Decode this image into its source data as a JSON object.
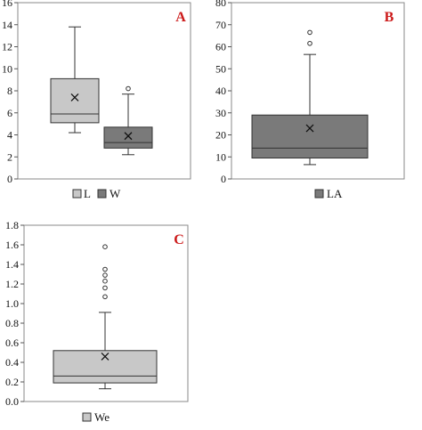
{
  "chart_data": [
    {
      "type": "box",
      "panel_label": "A",
      "ylim": [
        0,
        16
      ],
      "yticks": [
        0,
        2,
        4,
        6,
        8,
        10,
        12,
        14,
        16
      ],
      "grid": false,
      "legend_position": "bottom",
      "series": [
        {
          "name": "L",
          "color": "#c8c8c8",
          "min": 4.2,
          "q1": 5.1,
          "median": 5.9,
          "q3": 9.1,
          "max": 13.8,
          "mean": 7.4,
          "outliers": []
        },
        {
          "name": "W",
          "color": "#7a7a7a",
          "min": 2.2,
          "q1": 2.8,
          "median": 3.3,
          "q3": 4.7,
          "max": 7.7,
          "mean": 3.9,
          "outliers": [
            8.2
          ]
        }
      ]
    },
    {
      "type": "box",
      "panel_label": "B",
      "ylim": [
        0,
        80
      ],
      "yticks": [
        0,
        10,
        20,
        30,
        40,
        50,
        60,
        70,
        80
      ],
      "grid": false,
      "legend_position": "bottom",
      "series": [
        {
          "name": "LA",
          "color": "#7a7a7a",
          "min": 6.5,
          "q1": 9.5,
          "median": 14,
          "q3": 29,
          "max": 56.5,
          "mean": 23,
          "outliers": [
            61.5,
            66.5
          ]
        }
      ]
    },
    {
      "type": "box",
      "panel_label": "C",
      "ylim": [
        0,
        1.8
      ],
      "yticks": [
        "0.0",
        "0.2",
        "0.4",
        "0.6",
        "0.8",
        "1.0",
        "1.2",
        "1.4",
        "1.6",
        "1.8"
      ],
      "grid": false,
      "legend_position": "bottom",
      "series": [
        {
          "name": "We",
          "color": "#c8c8c8",
          "min": 0.13,
          "q1": 0.19,
          "median": 0.26,
          "q3": 0.52,
          "max": 0.91,
          "mean": 0.46,
          "outliers": [
            1.07,
            1.16,
            1.23,
            1.29,
            1.35,
            1.58
          ]
        }
      ]
    }
  ]
}
